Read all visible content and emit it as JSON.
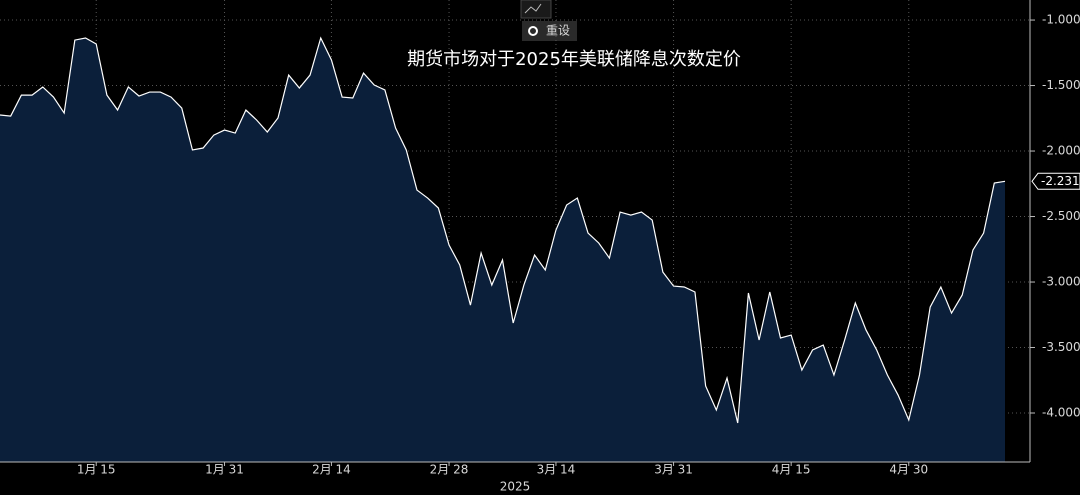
{
  "toolbar": {
    "reset": "重设"
  },
  "chart_data": {
    "type": "area",
    "title": "期货市场对于2025年美联储降息次数定价",
    "xlabel": "2025",
    "color": "#ffffff",
    "fill": "#0b1f3a",
    "grid": true,
    "categories": [
      null,
      null,
      null,
      null,
      null,
      null,
      null,
      null,
      null,
      "1月 15",
      null,
      null,
      null,
      null,
      null,
      null,
      null,
      null,
      null,
      null,
      null,
      "1月 31",
      null,
      null,
      null,
      null,
      null,
      null,
      null,
      null,
      null,
      "2月 14",
      null,
      null,
      null,
      null,
      null,
      null,
      null,
      null,
      null,
      null,
      "2月 28",
      null,
      null,
      null,
      null,
      null,
      null,
      null,
      null,
      null,
      "3月 14",
      null,
      null,
      null,
      null,
      null,
      null,
      null,
      null,
      null,
      null,
      "3月 31",
      null,
      null,
      null,
      null,
      null,
      null,
      null,
      null,
      null,
      null,
      "4月 15",
      null,
      null,
      null,
      null,
      null,
      null,
      null,
      null,
      null,
      null,
      "4月 30",
      null,
      null,
      null,
      null,
      null,
      null,
      null,
      null,
      null
    ],
    "values": [
      -1.725,
      -1.733,
      -1.573,
      -1.573,
      -1.511,
      -1.588,
      -1.71,
      -1.153,
      -1.137,
      -1.183,
      -1.573,
      -1.687,
      -1.511,
      -1.58,
      -1.55,
      -1.55,
      -1.588,
      -1.672,
      -1.992,
      -1.977,
      -1.878,
      -1.84,
      -1.863,
      -1.687,
      -1.763,
      -1.855,
      -1.748,
      -1.42,
      -1.519,
      -1.42,
      -1.137,
      -1.305,
      -1.588,
      -1.595,
      -1.405,
      -1.496,
      -1.534,
      -1.824,
      -1.992,
      -2.298,
      -2.359,
      -2.435,
      -2.718,
      -2.87,
      -3.176,
      -2.779,
      -3.023,
      -2.832,
      -3.313,
      -3.023,
      -2.794,
      -2.908,
      -2.603,
      -2.412,
      -2.359,
      -2.626,
      -2.702,
      -2.817,
      -2.466,
      -2.489,
      -2.466,
      -2.527,
      -2.924,
      -3.031,
      -3.038,
      -3.076,
      -3.794,
      -3.977,
      -3.733,
      -4.076,
      -3.084,
      -3.443,
      -3.076,
      -3.427,
      -3.405,
      -3.672,
      -3.519,
      -3.481,
      -3.71,
      -3.443,
      -3.16,
      -3.366,
      -3.519,
      -3.71,
      -3.863,
      -4.053,
      -3.71,
      -3.191,
      -3.038,
      -3.237,
      -3.099,
      -2.756,
      -2.626,
      -2.244,
      -2.231
    ],
    "ylim": [
      -4.374,
      -0.847
    ],
    "yticks": [
      {
        "value": -1,
        "label": "-1.000"
      },
      {
        "value": -1.5,
        "label": "-1.500"
      },
      {
        "value": -2,
        "label": "-2.000"
      },
      {
        "value": -2.5,
        "label": "-2.500"
      },
      {
        "value": -3,
        "label": "-3.000"
      },
      {
        "value": -3.5,
        "label": "-3.500"
      },
      {
        "value": -4,
        "label": "-4.000"
      }
    ]
  }
}
